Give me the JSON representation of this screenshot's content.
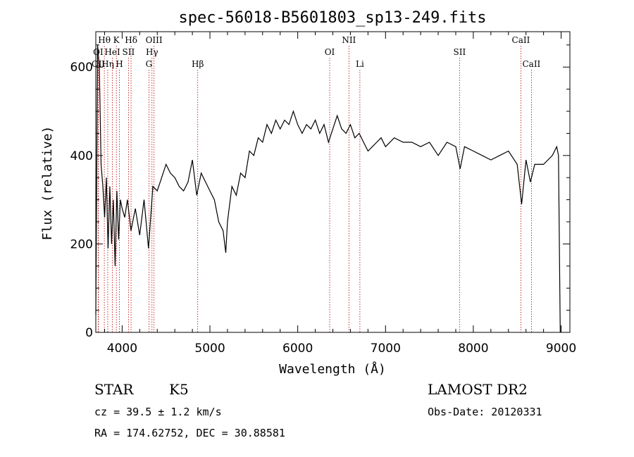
{
  "chart_data": {
    "type": "line",
    "title": "spec-56018-B5601803_sp13-249.fits",
    "xlabel": "Wavelength (Å)",
    "ylabel": "Flux (relative)",
    "xlim": [
      3700,
      9100
    ],
    "ylim": [
      0,
      680
    ],
    "x_ticks": [
      4000,
      5000,
      6000,
      7000,
      8000,
      9000
    ],
    "y_ticks": [
      0,
      200,
      400,
      600
    ],
    "grid": false,
    "series": [
      {
        "x": [
          3700,
          3720,
          3740,
          3760,
          3780,
          3800,
          3820,
          3840,
          3860,
          3880,
          3900,
          3920,
          3940,
          3960,
          3980,
          4000,
          4030,
          4060,
          4100,
          4150,
          4200,
          4250,
          4300,
          4350,
          4400,
          4450,
          4500,
          4550,
          4600,
          4650,
          4700,
          4750,
          4800,
          4850,
          4900,
          4950,
          5000,
          5050,
          5100,
          5150,
          5180,
          5200,
          5250,
          5300,
          5350,
          5400,
          5450,
          5500,
          5550,
          5600,
          5650,
          5700,
          5750,
          5800,
          5850,
          5900,
          5950,
          6000,
          6050,
          6100,
          6150,
          6200,
          6250,
          6300,
          6350,
          6400,
          6450,
          6500,
          6550,
          6600,
          6650,
          6700,
          6750,
          6800,
          6850,
          6900,
          6950,
          7000,
          7100,
          7200,
          7300,
          7400,
          7500,
          7600,
          7700,
          7800,
          7850,
          7900,
          8000,
          8100,
          8200,
          8300,
          8400,
          8500,
          8550,
          8600,
          8650,
          8700,
          8800,
          8900,
          8950,
          8970,
          8990
        ],
        "y": [
          40,
          650,
          600,
          380,
          330,
          260,
          350,
          190,
          330,
          200,
          300,
          150,
          320,
          210,
          300,
          280,
          260,
          300,
          230,
          280,
          220,
          300,
          190,
          330,
          320,
          350,
          380,
          360,
          350,
          330,
          320,
          340,
          390,
          310,
          360,
          340,
          320,
          300,
          250,
          230,
          180,
          250,
          330,
          310,
          360,
          350,
          410,
          400,
          440,
          430,
          470,
          450,
          480,
          460,
          480,
          470,
          500,
          470,
          450,
          470,
          460,
          480,
          450,
          470,
          430,
          460,
          490,
          460,
          450,
          470,
          440,
          450,
          430,
          410,
          420,
          430,
          440,
          420,
          440,
          430,
          430,
          420,
          430,
          400,
          430,
          420,
          370,
          420,
          410,
          400,
          390,
          400,
          410,
          380,
          290,
          390,
          340,
          380,
          380,
          400,
          420,
          400,
          0
        ]
      }
    ],
    "spectral_lines": [
      {
        "label": "Hθ",
        "wavelength": 3797,
        "row": 1
      },
      {
        "label": "K",
        "wavelength": 3934,
        "row": 1
      },
      {
        "label": "Hδ",
        "wavelength": 4102,
        "row": 1
      },
      {
        "label": "OIII",
        "wavelength": 4363,
        "row": 1
      },
      {
        "label": "NII",
        "wavelength": 6583,
        "row": 1
      },
      {
        "label": "CaII",
        "wavelength": 8542,
        "row": 1
      },
      {
        "label": "OI",
        "wavelength": 3727,
        "row": 2
      },
      {
        "label": "HeI",
        "wavelength": 3889,
        "row": 2
      },
      {
        "label": "SII",
        "wavelength": 4072,
        "row": 2
      },
      {
        "label": "Hγ",
        "wavelength": 4340,
        "row": 2
      },
      {
        "label": "OI",
        "wavelength": 6364,
        "row": 2
      },
      {
        "label": "SII",
        "wavelength": 7843,
        "row": 2
      },
      {
        "label": "OII",
        "wavelength": 3729,
        "row": 3
      },
      {
        "label": "Hη",
        "wavelength": 3836,
        "row": 3
      },
      {
        "label": "H",
        "wavelength": 3969,
        "row": 3
      },
      {
        "label": "G",
        "wavelength": 4305,
        "row": 3
      },
      {
        "label": "Hβ",
        "wavelength": 4861,
        "row": 3
      },
      {
        "label": "Li",
        "wavelength": 6708,
        "row": 3
      },
      {
        "label": "CaII",
        "wavelength": 8662,
        "row": 3
      }
    ]
  },
  "info": {
    "star_type": "STAR",
    "subclass": "K5",
    "survey": "LAMOST DR2",
    "cz": "cz = 39.5 ± 1.2 km/s",
    "obs_date": "Obs-Date: 20120331",
    "coords": "RA = 174.62752, DEC =  30.88581"
  },
  "colors": {
    "line_marker": "#c00000",
    "spectrum": "#000000"
  }
}
